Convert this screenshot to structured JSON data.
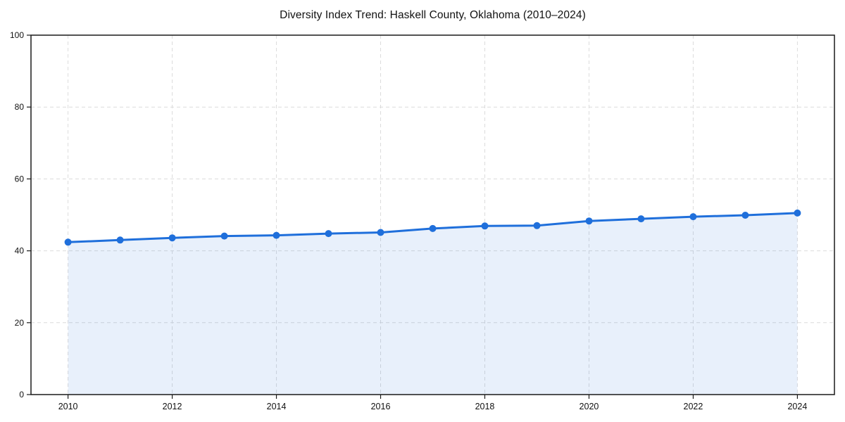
{
  "chart_data": {
    "type": "line",
    "title": "Diversity Index Trend: Haskell County, Oklahoma (2010–2024)",
    "xlabel": "",
    "ylabel": "",
    "x": [
      2010,
      2011,
      2012,
      2013,
      2014,
      2015,
      2016,
      2017,
      2018,
      2019,
      2020,
      2021,
      2022,
      2023,
      2024
    ],
    "series": [
      {
        "name": "Diversity Index",
        "values": [
          42.4,
          43.0,
          43.6,
          44.1,
          44.3,
          44.8,
          45.1,
          46.2,
          46.9,
          47.0,
          48.3,
          48.9,
          49.5,
          49.9,
          50.5
        ]
      }
    ],
    "ylim": [
      0,
      100
    ],
    "yticks": [
      0,
      20,
      40,
      60,
      80,
      100
    ],
    "xticks": [
      2010,
      2012,
      2014,
      2016,
      2018,
      2020,
      2022,
      2024
    ],
    "grid": true,
    "grid_style": "dashed",
    "legend": false,
    "area_fill": true,
    "colors": {
      "line": "#1f6fdb",
      "marker": "#1f6fdb",
      "area_fill": "rgba(31,111,219,0.10)",
      "grid": "#dcdcdc",
      "axis": "#1a1a1a",
      "tick_label": "#111111",
      "background": "#ffffff"
    }
  }
}
